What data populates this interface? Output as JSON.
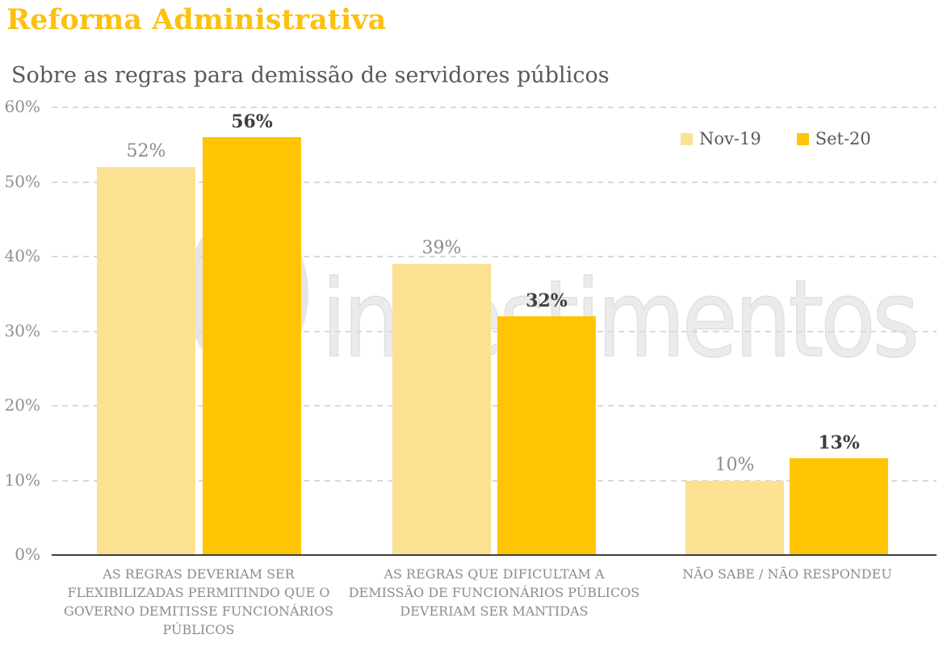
{
  "title": "Reforma Administrativa",
  "subtitle": "Sobre as regras para demissão de servidores públicos",
  "watermark": "investimentos",
  "colors": {
    "title_gold": "#FCC00E",
    "series_nov19": "#FBE191",
    "series_set20": "#FFC505",
    "subtitle_gray": "#595959",
    "axis_gray": "#909090",
    "grid_gray": "#D9D9D9",
    "axis_line": "#3F3F3F",
    "watermark_gray": "#E5E5E5"
  },
  "legend": {
    "position": "top-right",
    "items": [
      {
        "label": "Nov-19",
        "color": "#FBE191"
      },
      {
        "label": "Set-20",
        "color": "#FFC505"
      }
    ]
  },
  "chart_data": {
    "type": "bar",
    "title": "Reforma Administrativa",
    "subtitle": "Sobre as regras para demissão de servidores públicos",
    "categories": [
      "AS REGRAS DEVERIAM SER\nFLEXIBILIZADAS PERMITINDO QUE O\nGOVERNO DEMITISSE FUNCIONÁRIOS\nPÚBLICOS",
      "AS REGRAS QUE DIFICULTAM A\nDEMISSÃO DE FUNCIONÁRIOS PÚBLICOS\nDEVERIAM SER MANTIDAS",
      "NÃO SABE / NÃO RESPONDEU"
    ],
    "series": [
      {
        "name": "Nov-19",
        "color": "#FBE191",
        "values": [
          52,
          39,
          10
        ],
        "labels": [
          "52%",
          "39%",
          "10%"
        ]
      },
      {
        "name": "Set-20",
        "color": "#FFC505",
        "values": [
          56,
          32,
          13
        ],
        "labels": [
          "56%",
          "32%",
          "13%"
        ]
      }
    ],
    "xlabel": "",
    "ylabel": "",
    "ylim": [
      0,
      60
    ],
    "yticks": [
      {
        "value": 0,
        "label": "0%"
      },
      {
        "value": 10,
        "label": "10%"
      },
      {
        "value": 20,
        "label": "20%"
      },
      {
        "value": 30,
        "label": "30%"
      },
      {
        "value": 40,
        "label": "40%"
      },
      {
        "value": 50,
        "label": "50%"
      },
      {
        "value": 60,
        "label": "60%"
      }
    ],
    "grid": "horizontal-dashed",
    "legend_position": "top-right"
  }
}
